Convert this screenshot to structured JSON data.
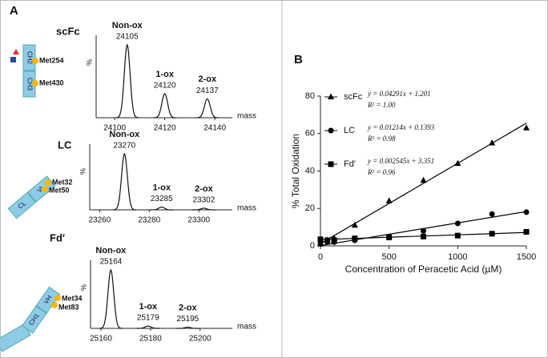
{
  "chart_data": [
    {
      "type": "spectrum",
      "panel": "A",
      "title": "scFc",
      "domains": [
        "CH2",
        "CH3"
      ],
      "sites": [
        "Met254",
        "Met430"
      ],
      "y_label": "%",
      "x_label": "mass",
      "xlim": [
        24092.6,
        24147
      ],
      "xticks": [
        24100,
        24120,
        24140
      ],
      "ylim": [
        0,
        100
      ],
      "peaks": [
        {
          "label": "Non-ox",
          "mass": 24105,
          "intensity": 100
        },
        {
          "label": "1-ox",
          "mass": 24120,
          "intensity": 33
        },
        {
          "label": "2-ox",
          "mass": 24137,
          "intensity": 26
        }
      ]
    },
    {
      "type": "spectrum",
      "title": "LC",
      "domains": [
        "VL",
        "CL"
      ],
      "sites": [
        "Met32",
        "Met50"
      ],
      "y_label": "%",
      "x_label": "mass",
      "xlim": [
        23256,
        23313.5
      ],
      "xticks": [
        23260,
        23280,
        23300
      ],
      "ylim": [
        0,
        100
      ],
      "peaks": [
        {
          "label": "Non-ox",
          "mass": 23270,
          "intensity": 100
        },
        {
          "label": "1-ox",
          "mass": 23285,
          "intensity": 5
        },
        {
          "label": "2-ox",
          "mass": 23302,
          "intensity": 3
        }
      ]
    },
    {
      "type": "spectrum",
      "title": "Fd′",
      "domains": [
        "VH",
        "CH1"
      ],
      "sites": [
        "Met34",
        "Met83"
      ],
      "y_label": "%",
      "x_label": "mass",
      "xlim": [
        25155.8,
        25213
      ],
      "xticks": [
        25160,
        25180,
        25200
      ],
      "ylim": [
        0,
        100
      ],
      "peaks": [
        {
          "label": "Non-ox",
          "mass": 25164,
          "intensity": 100
        },
        {
          "label": "1-ox",
          "mass": 25179,
          "intensity": 4
        },
        {
          "label": "2-ox",
          "mass": 25195,
          "intensity": 2
        }
      ]
    },
    {
      "type": "scatter",
      "panel": "B",
      "x_label": "Concentration of Peracetic Acid (µM)",
      "y_label": "% Total Oxidation",
      "xlim": [
        0,
        1500
      ],
      "xticks": [
        0,
        500,
        1000,
        1500
      ],
      "ylim": [
        0,
        80
      ],
      "yticks": [
        0,
        20,
        40,
        60,
        80
      ],
      "legend": "upper left",
      "x": [
        0,
        50,
        100,
        250,
        500,
        750,
        1000,
        1250,
        1500
      ],
      "series": [
        {
          "name": "scFc",
          "marker": "triangle",
          "color": "#000000",
          "values": [
            1,
            3,
            4,
            11,
            24,
            35,
            44,
            55,
            63
          ],
          "fit": {
            "slope": 0.04291,
            "intercept": 1.201
          },
          "equation": "y = 0.04291x + 1.201",
          "r2": "R² = 1.00"
        },
        {
          "name": "LC",
          "marker": "circle",
          "color": "#000000",
          "values": [
            1,
            2,
            2,
            3,
            5,
            8,
            12,
            17,
            18
          ],
          "fit": {
            "slope": 0.01214,
            "intercept": 0.1393
          },
          "equation": "y = 0.01214x + 0.1393",
          "r2": "R² = 0.98"
        },
        {
          "name": "Fd'",
          "marker": "square",
          "color": "#000000",
          "values": [
            3.5,
            3,
            3,
            4,
            4.5,
            5,
            5.5,
            6.5,
            7.5
          ],
          "fit": {
            "slope": 0.002545,
            "intercept": 3.351
          },
          "equation": "y = 0.002545x + 3.351",
          "r2": "R² = 0.96"
        }
      ]
    }
  ]
}
